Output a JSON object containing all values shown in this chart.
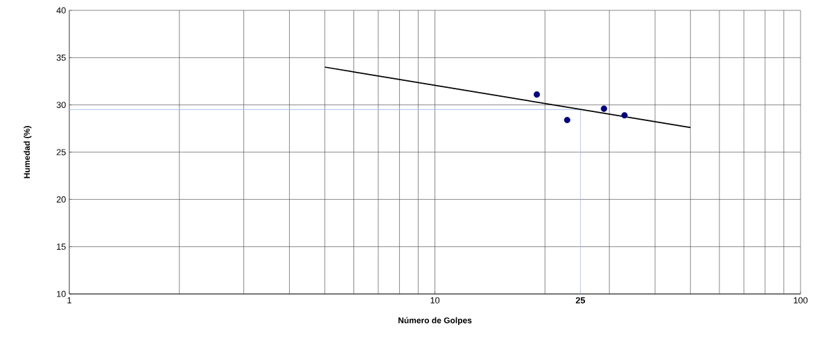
{
  "chart_data": {
    "type": "scatter",
    "xlabel": "Número de Golpes",
    "ylabel": "Humedad (%)",
    "log": "x",
    "xlim": [
      1,
      100
    ],
    "ylim": [
      10,
      40
    ],
    "xticks": [
      1,
      10,
      {
        "value": 25,
        "label": "**25**"
      },
      100
    ],
    "yticks": [
      10,
      15,
      20,
      25,
      30,
      35,
      40
    ],
    "grid": true,
    "marker": "circle",
    "series": [
      {
        "color": "#000080",
        "x": [
          19,
          23,
          29,
          33
        ],
        "values": [
          31.1,
          28.4,
          29.6,
          28.9
        ]
      },
      {
        "type": "line",
        "color": "#000000",
        "marker": "none",
        "x": [
          5,
          50
        ],
        "values": [
          34.0,
          27.6
        ]
      }
    ],
    "ref_lines": [
      {
        "axis": "y",
        "value": 29.5,
        "color": "#99bbff"
      },
      {
        "axis": "x",
        "value": 25,
        "color": "#99bbff"
      }
    ]
  }
}
